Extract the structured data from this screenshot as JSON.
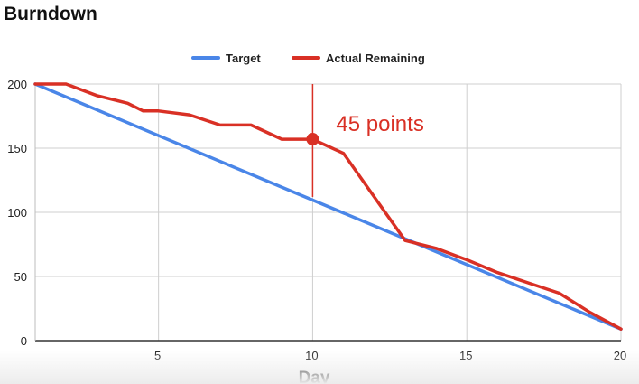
{
  "chart_data": {
    "type": "line",
    "title": "Burndown",
    "xlabel": "Day",
    "ylabel": "",
    "xlim": [
      1,
      20
    ],
    "ylim": [
      0,
      200
    ],
    "x_ticks": [
      5,
      10,
      15,
      20
    ],
    "y_ticks": [
      0,
      50,
      100,
      150,
      200
    ],
    "grid": true,
    "legend_position": "top-center",
    "series": [
      {
        "name": "Target",
        "color": "#4a86e8",
        "x": [
          1,
          20
        ],
        "values": [
          200,
          9
        ]
      },
      {
        "name": "Actual Remaining",
        "color": "#d93025",
        "x": [
          1,
          2,
          3,
          4,
          4.5,
          5,
          6,
          7,
          8,
          9,
          10,
          11,
          12,
          13,
          14,
          15,
          16,
          17,
          18,
          19,
          20
        ],
        "values": [
          200,
          200,
          191,
          185,
          179,
          179,
          176,
          168,
          168,
          157,
          157,
          146,
          112,
          78,
          72,
          63,
          53,
          45,
          37,
          22,
          9
        ]
      }
    ],
    "annotation": {
      "text": "45 points",
      "x": 10,
      "y": 157,
      "line_to_y": 112,
      "color": "#d93025"
    }
  }
}
